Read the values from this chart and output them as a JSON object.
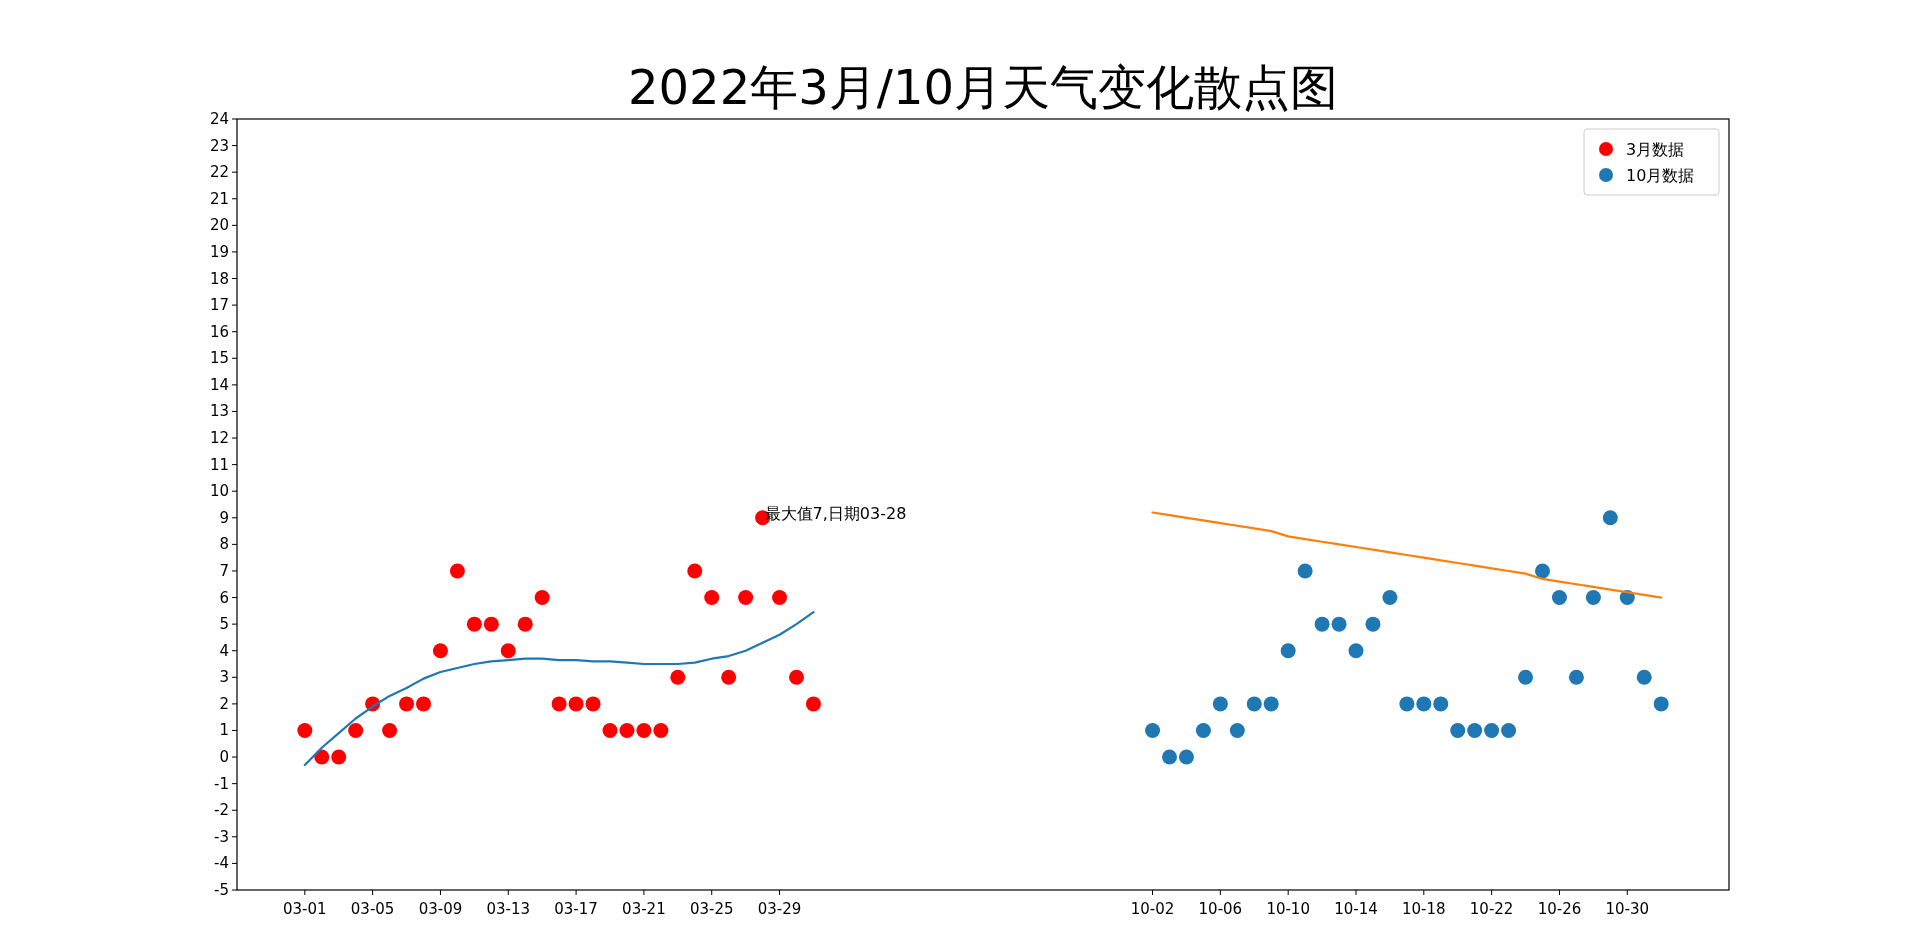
{
  "chart_data": {
    "type": "scatter",
    "title": "2022年3月/10月天气变化散点图",
    "ylim": [
      -5,
      24
    ],
    "categories": [
      "03-01",
      null,
      null,
      null,
      "03-05",
      null,
      null,
      null,
      "03-09",
      null,
      null,
      null,
      "03-13",
      null,
      null,
      null,
      "03-17",
      null,
      null,
      null,
      "03-21",
      null,
      null,
      null,
      "03-25",
      null,
      null,
      null,
      "03-29",
      null,
      null,
      null,
      null,
      null,
      null,
      null,
      null,
      null,
      null,
      null,
      null,
      null,
      null,
      null,
      null,
      null,
      null,
      null,
      null,
      null,
      "10-02",
      null,
      null,
      null,
      "10-06",
      null,
      null,
      null,
      "10-10",
      null,
      null,
      null,
      "10-14",
      null,
      null,
      null,
      "10-18",
      null,
      null,
      null,
      "10-22",
      null,
      null,
      null,
      "10-26",
      null,
      null,
      null,
      "10-30",
      null,
      null
    ],
    "yticks": [
      -5,
      -4,
      -3,
      -2,
      -1,
      0,
      1,
      2,
      3,
      4,
      5,
      6,
      7,
      8,
      9,
      10,
      11,
      12,
      13,
      14,
      15,
      16,
      17,
      18,
      19,
      20,
      21,
      22,
      23,
      24
    ],
    "legend": "top right",
    "marker": "circle",
    "annotations": [
      "最大值7,日期03-28"
    ],
    "series": [
      {
        "name": "3月数据",
        "color": "#ff0000",
        "values": [
          1,
          0,
          0,
          1,
          2,
          1,
          2,
          2,
          4,
          7,
          5,
          5,
          4,
          5,
          6,
          2,
          2,
          2,
          1,
          1,
          1,
          1,
          3,
          7,
          6,
          3,
          6,
          9,
          6,
          3,
          2,
          null,
          null,
          null,
          null,
          null,
          null,
          null,
          null,
          null,
          null,
          null,
          null,
          null,
          null,
          null,
          null,
          null,
          null,
          null,
          null,
          null,
          null,
          null,
          null,
          null,
          null,
          null,
          null,
          null,
          null,
          null,
          null,
          null,
          null,
          null,
          null,
          null,
          null,
          null,
          null,
          null,
          null,
          null,
          null,
          null,
          null,
          null,
          null,
          null,
          null
        ]
      },
      {
        "name": "10月数据",
        "color": "#1f77b4",
        "values": [
          null,
          null,
          null,
          null,
          null,
          null,
          null,
          null,
          null,
          null,
          null,
          null,
          null,
          null,
          null,
          null,
          null,
          null,
          null,
          null,
          null,
          null,
          null,
          null,
          null,
          null,
          null,
          null,
          null,
          null,
          null,
          null,
          null,
          null,
          null,
          null,
          null,
          null,
          null,
          null,
          null,
          null,
          null,
          null,
          null,
          null,
          null,
          null,
          null,
          null,
          1,
          0,
          0,
          1,
          2,
          1,
          2,
          2,
          4,
          7,
          5,
          5,
          4,
          5,
          6,
          2,
          2,
          2,
          1,
          1,
          1,
          1,
          3,
          7,
          6,
          3,
          6,
          9,
          6,
          3,
          2
        ]
      },
      {
        "type": "line",
        "marker": "none",
        "color": "#1f77b4",
        "values": [
          -0.3,
          0.35,
          0.9,
          1.45,
          1.9,
          2.3,
          2.6,
          2.95,
          3.2,
          3.35,
          3.5,
          3.6,
          3.65,
          3.7,
          3.7,
          3.65,
          3.65,
          3.6,
          3.6,
          3.55,
          3.5,
          3.5,
          3.5,
          3.55,
          3.7,
          3.8,
          4.0,
          4.3,
          4.6,
          5.0,
          5.45,
          null,
          null,
          null,
          null,
          null,
          null,
          null,
          null,
          null,
          null,
          null,
          null,
          null,
          null,
          null,
          null,
          null,
          null,
          null,
          null,
          null,
          null,
          null,
          null,
          null,
          null,
          null,
          null,
          null,
          null,
          null,
          null,
          null,
          null,
          null,
          null,
          null,
          null,
          null,
          null,
          null,
          null,
          null,
          null,
          null,
          null,
          null,
          null,
          null,
          null
        ]
      },
      {
        "type": "line",
        "marker": "none",
        "color": "#ff7f0e",
        "values": [
          null,
          null,
          null,
          null,
          null,
          null,
          null,
          null,
          null,
          null,
          null,
          null,
          null,
          null,
          null,
          null,
          null,
          null,
          null,
          null,
          null,
          null,
          null,
          null,
          null,
          null,
          null,
          null,
          null,
          null,
          null,
          null,
          null,
          null,
          null,
          null,
          null,
          null,
          null,
          null,
          null,
          null,
          null,
          null,
          null,
          null,
          null,
          null,
          null,
          null,
          9.2,
          9.1,
          9.0,
          8.9,
          8.8,
          8.7,
          8.6,
          8.5,
          8.3,
          8.2,
          8.1,
          8.0,
          7.9,
          7.8,
          7.7,
          7.6,
          7.5,
          7.4,
          7.3,
          7.2,
          7.1,
          7.0,
          6.9,
          6.7,
          6.6,
          6.5,
          6.4,
          6.3,
          6.2,
          6.1,
          6.0
        ]
      }
    ]
  }
}
